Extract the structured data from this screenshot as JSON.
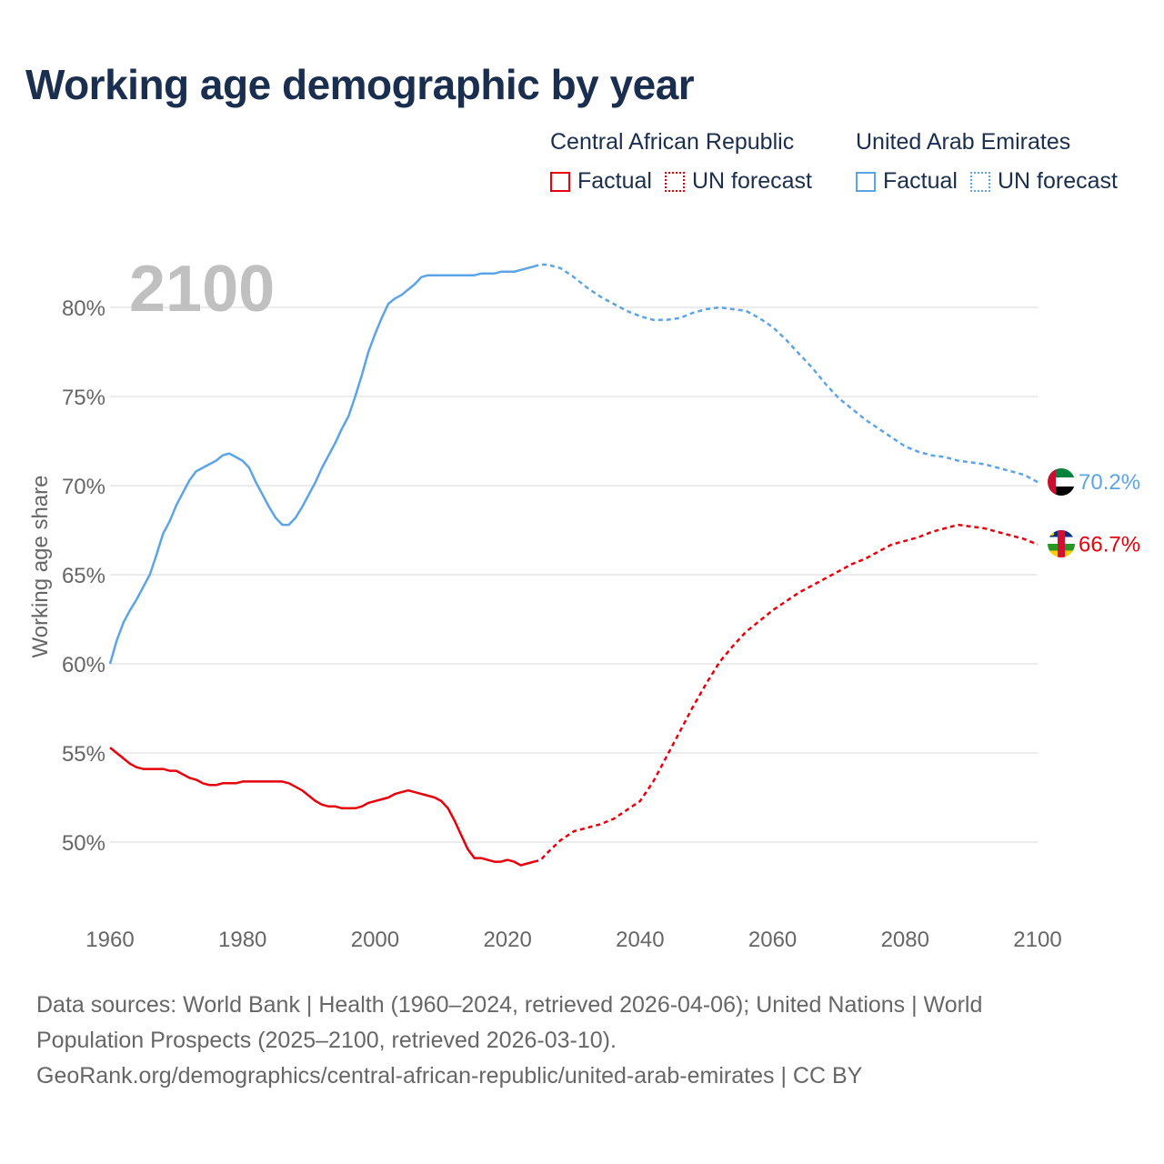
{
  "title": "Working age demographic by year",
  "legend": {
    "groups": [
      {
        "country": "Central African Republic",
        "factual": "Factual",
        "forecast": "UN forecast"
      },
      {
        "country": "United Arab Emirates",
        "factual": "Factual",
        "forecast": "UN forecast"
      }
    ]
  },
  "footer": {
    "line1": "Data sources: World Bank | Health (1960–2024, retrieved 2026-04-06); United Nations | World",
    "line2": "Population Prospects (2025–2100, retrieved 2026-03-10).",
    "line3": "GeoRank.org/demographics/central-african-republic/united-arab-emirates | CC BY"
  },
  "chart_data": {
    "type": "line",
    "year_label": "2100",
    "ylabel": "Working age share",
    "xlim": [
      1960,
      2100
    ],
    "ylim": [
      46,
      83
    ],
    "xticks": [
      1960,
      1980,
      2000,
      2020,
      2040,
      2060,
      2080,
      2100
    ],
    "yticks": [
      50,
      55,
      60,
      65,
      70,
      75,
      80
    ],
    "ytick_labels": [
      "50%",
      "55%",
      "60%",
      "65%",
      "70%",
      "75%",
      "80%"
    ],
    "xtick_labels": [
      "1960",
      "1980",
      "2000",
      "2020",
      "2040",
      "2060",
      "2080",
      "2100"
    ],
    "series": [
      {
        "name": "United Arab Emirates",
        "color": "#5ba4e6",
        "end_label": "70.2%",
        "factual_end": 2024,
        "points": [
          [
            1960,
            60.0
          ],
          [
            1961,
            61.3
          ],
          [
            1962,
            62.3
          ],
          [
            1963,
            63.0
          ],
          [
            1964,
            63.6
          ],
          [
            1965,
            64.3
          ],
          [
            1966,
            65.0
          ],
          [
            1967,
            66.1
          ],
          [
            1968,
            67.3
          ],
          [
            1969,
            68.0
          ],
          [
            1970,
            68.9
          ],
          [
            1971,
            69.6
          ],
          [
            1972,
            70.3
          ],
          [
            1973,
            70.8
          ],
          [
            1974,
            71.0
          ],
          [
            1975,
            71.2
          ],
          [
            1976,
            71.4
          ],
          [
            1977,
            71.7
          ],
          [
            1978,
            71.8
          ],
          [
            1979,
            71.6
          ],
          [
            1980,
            71.4
          ],
          [
            1981,
            71.0
          ],
          [
            1982,
            70.2
          ],
          [
            1983,
            69.5
          ],
          [
            1984,
            68.8
          ],
          [
            1985,
            68.2
          ],
          [
            1986,
            67.8
          ],
          [
            1987,
            67.8
          ],
          [
            1988,
            68.2
          ],
          [
            1989,
            68.8
          ],
          [
            1990,
            69.5
          ],
          [
            1991,
            70.2
          ],
          [
            1992,
            71.0
          ],
          [
            1993,
            71.7
          ],
          [
            1994,
            72.4
          ],
          [
            1995,
            73.2
          ],
          [
            1996,
            73.9
          ],
          [
            1997,
            75.0
          ],
          [
            1998,
            76.2
          ],
          [
            1999,
            77.5
          ],
          [
            2000,
            78.5
          ],
          [
            2001,
            79.4
          ],
          [
            2002,
            80.2
          ],
          [
            2003,
            80.5
          ],
          [
            2004,
            80.7
          ],
          [
            2005,
            81.0
          ],
          [
            2006,
            81.3
          ],
          [
            2007,
            81.7
          ],
          [
            2008,
            81.8
          ],
          [
            2009,
            81.8
          ],
          [
            2010,
            81.8
          ],
          [
            2011,
            81.8
          ],
          [
            2012,
            81.8
          ],
          [
            2013,
            81.8
          ],
          [
            2014,
            81.8
          ],
          [
            2015,
            81.8
          ],
          [
            2016,
            81.9
          ],
          [
            2017,
            81.9
          ],
          [
            2018,
            81.9
          ],
          [
            2019,
            82.0
          ],
          [
            2020,
            82.0
          ],
          [
            2021,
            82.0
          ],
          [
            2022,
            82.1
          ],
          [
            2023,
            82.2
          ],
          [
            2024,
            82.3
          ],
          [
            2025,
            82.4
          ],
          [
            2026,
            82.4
          ],
          [
            2028,
            82.2
          ],
          [
            2030,
            81.7
          ],
          [
            2032,
            81.1
          ],
          [
            2034,
            80.6
          ],
          [
            2036,
            80.2
          ],
          [
            2038,
            79.8
          ],
          [
            2040,
            79.5
          ],
          [
            2042,
            79.3
          ],
          [
            2044,
            79.3
          ],
          [
            2046,
            79.4
          ],
          [
            2048,
            79.7
          ],
          [
            2050,
            79.9
          ],
          [
            2052,
            80.0
          ],
          [
            2054,
            79.9
          ],
          [
            2056,
            79.8
          ],
          [
            2058,
            79.4
          ],
          [
            2060,
            78.9
          ],
          [
            2062,
            78.2
          ],
          [
            2064,
            77.4
          ],
          [
            2066,
            76.6
          ],
          [
            2068,
            75.7
          ],
          [
            2070,
            74.9
          ],
          [
            2072,
            74.3
          ],
          [
            2074,
            73.7
          ],
          [
            2076,
            73.2
          ],
          [
            2078,
            72.7
          ],
          [
            2080,
            72.2
          ],
          [
            2082,
            71.9
          ],
          [
            2084,
            71.7
          ],
          [
            2086,
            71.6
          ],
          [
            2088,
            71.4
          ],
          [
            2090,
            71.3
          ],
          [
            2092,
            71.2
          ],
          [
            2094,
            71.0
          ],
          [
            2096,
            70.8
          ],
          [
            2098,
            70.6
          ],
          [
            2099,
            70.4
          ],
          [
            2100,
            70.2
          ]
        ]
      },
      {
        "name": "Central African Republic",
        "color": "#e8000b",
        "end_label": "66.7%",
        "factual_end": 2024,
        "points": [
          [
            1960,
            55.3
          ],
          [
            1961,
            55.0
          ],
          [
            1962,
            54.7
          ],
          [
            1963,
            54.4
          ],
          [
            1964,
            54.2
          ],
          [
            1965,
            54.1
          ],
          [
            1966,
            54.1
          ],
          [
            1967,
            54.1
          ],
          [
            1968,
            54.1
          ],
          [
            1969,
            54.0
          ],
          [
            1970,
            54.0
          ],
          [
            1971,
            53.8
          ],
          [
            1972,
            53.6
          ],
          [
            1973,
            53.5
          ],
          [
            1974,
            53.3
          ],
          [
            1975,
            53.2
          ],
          [
            1976,
            53.2
          ],
          [
            1977,
            53.3
          ],
          [
            1978,
            53.3
          ],
          [
            1979,
            53.3
          ],
          [
            1980,
            53.4
          ],
          [
            1981,
            53.4
          ],
          [
            1982,
            53.4
          ],
          [
            1983,
            53.4
          ],
          [
            1984,
            53.4
          ],
          [
            1985,
            53.4
          ],
          [
            1986,
            53.4
          ],
          [
            1987,
            53.3
          ],
          [
            1988,
            53.1
          ],
          [
            1989,
            52.9
          ],
          [
            1990,
            52.6
          ],
          [
            1991,
            52.3
          ],
          [
            1992,
            52.1
          ],
          [
            1993,
            52.0
          ],
          [
            1994,
            52.0
          ],
          [
            1995,
            51.9
          ],
          [
            1996,
            51.9
          ],
          [
            1997,
            51.9
          ],
          [
            1998,
            52.0
          ],
          [
            1999,
            52.2
          ],
          [
            2000,
            52.3
          ],
          [
            2001,
            52.4
          ],
          [
            2002,
            52.5
          ],
          [
            2003,
            52.7
          ],
          [
            2004,
            52.8
          ],
          [
            2005,
            52.9
          ],
          [
            2006,
            52.8
          ],
          [
            2007,
            52.7
          ],
          [
            2008,
            52.6
          ],
          [
            2009,
            52.5
          ],
          [
            2010,
            52.3
          ],
          [
            2011,
            51.9
          ],
          [
            2012,
            51.2
          ],
          [
            2013,
            50.4
          ],
          [
            2014,
            49.6
          ],
          [
            2015,
            49.1
          ],
          [
            2016,
            49.1
          ],
          [
            2017,
            49.0
          ],
          [
            2018,
            48.9
          ],
          [
            2019,
            48.9
          ],
          [
            2020,
            49.0
          ],
          [
            2021,
            48.9
          ],
          [
            2022,
            48.7
          ],
          [
            2023,
            48.8
          ],
          [
            2024,
            48.9
          ],
          [
            2025,
            49.0
          ],
          [
            2026,
            49.4
          ],
          [
            2028,
            50.1
          ],
          [
            2030,
            50.6
          ],
          [
            2032,
            50.8
          ],
          [
            2034,
            51.0
          ],
          [
            2036,
            51.3
          ],
          [
            2038,
            51.8
          ],
          [
            2040,
            52.3
          ],
          [
            2042,
            53.4
          ],
          [
            2044,
            54.8
          ],
          [
            2046,
            56.2
          ],
          [
            2048,
            57.6
          ],
          [
            2050,
            58.9
          ],
          [
            2052,
            60.1
          ],
          [
            2054,
            61.0
          ],
          [
            2056,
            61.8
          ],
          [
            2058,
            62.4
          ],
          [
            2060,
            63.0
          ],
          [
            2062,
            63.5
          ],
          [
            2064,
            64.0
          ],
          [
            2066,
            64.4
          ],
          [
            2068,
            64.8
          ],
          [
            2070,
            65.2
          ],
          [
            2072,
            65.6
          ],
          [
            2074,
            65.9
          ],
          [
            2076,
            66.3
          ],
          [
            2078,
            66.7
          ],
          [
            2080,
            66.9
          ],
          [
            2082,
            67.1
          ],
          [
            2084,
            67.4
          ],
          [
            2086,
            67.6
          ],
          [
            2088,
            67.8
          ],
          [
            2090,
            67.7
          ],
          [
            2092,
            67.6
          ],
          [
            2094,
            67.4
          ],
          [
            2096,
            67.2
          ],
          [
            2098,
            67.0
          ],
          [
            2100,
            66.7
          ]
        ]
      }
    ]
  }
}
